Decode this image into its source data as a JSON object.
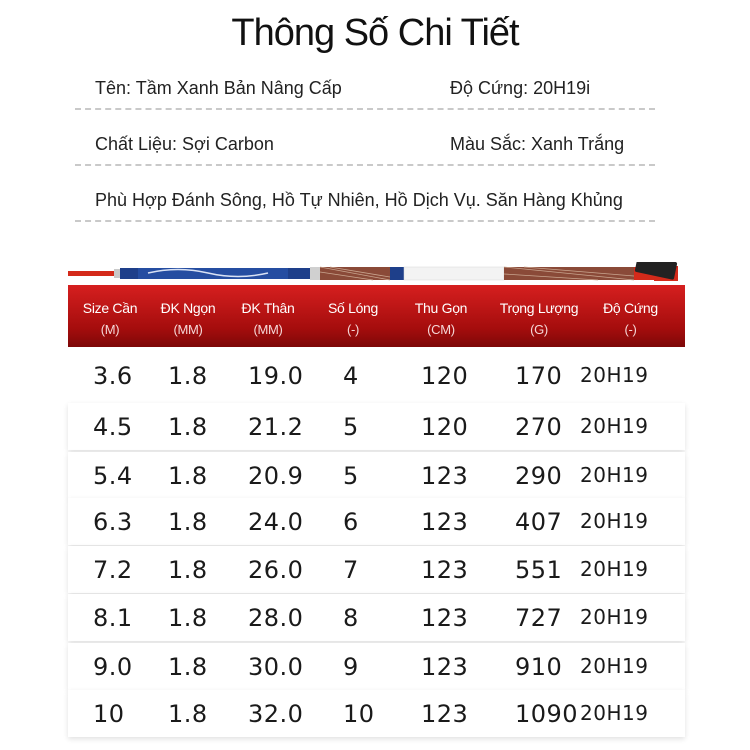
{
  "title": "Thông Số Chi Tiết",
  "specs": {
    "name": "Tên: Tầm Xanh Bản Nâng Cấp",
    "hardness": "Độ Cứng: 20H19i",
    "material": "Chất Liệu: Sợi Carbon",
    "color": "Màu Sắc: Xanh Trắng",
    "suitable": "Phù Hợp Đánh Sông, Hồ Tự Nhiên, Hồ Dịch Vụ. Săn Hàng Khủng"
  },
  "colors": {
    "header_red": "#c41616",
    "rod_blue": "#1e3f8a",
    "rod_red": "#d42a1a"
  },
  "table": {
    "headers": [
      {
        "label": "Size Cần",
        "unit": "(M)"
      },
      {
        "label": "ĐK Ngọn",
        "unit": "(MM)"
      },
      {
        "label": "ĐK Thân",
        "unit": "(MM)"
      },
      {
        "label": "Số Lóng",
        "unit": "(-)"
      },
      {
        "label": "Thu Gọn",
        "unit": "(CM)"
      },
      {
        "label": "Trọng Lượng",
        "unit": "(G)"
      },
      {
        "label": "Độ Cứng",
        "unit": "(-)"
      }
    ],
    "rows": [
      [
        "3.6",
        "1.8",
        "19.0",
        "4",
        "120",
        "170",
        "20H19"
      ],
      [
        "4.5",
        "1.8",
        "21.2",
        "5",
        "120",
        "270",
        "20H19"
      ],
      [
        "5.4",
        "1.8",
        "20.9",
        "5",
        "123",
        "290",
        "20H19"
      ],
      [
        "6.3",
        "1.8",
        "24.0",
        "6",
        "123",
        "407",
        "20H19"
      ],
      [
        "7.2",
        "1.8",
        "26.0",
        "7",
        "123",
        "551",
        "20H19"
      ],
      [
        "8.1",
        "1.8",
        "28.0",
        "8",
        "123",
        "727",
        "20H19"
      ],
      [
        "9.0",
        "1.8",
        "30.0",
        "9",
        "123",
        "910",
        "20H19"
      ],
      [
        "10",
        "1.8",
        "32.0",
        "10",
        "123",
        "1090",
        "20H19"
      ]
    ]
  }
}
